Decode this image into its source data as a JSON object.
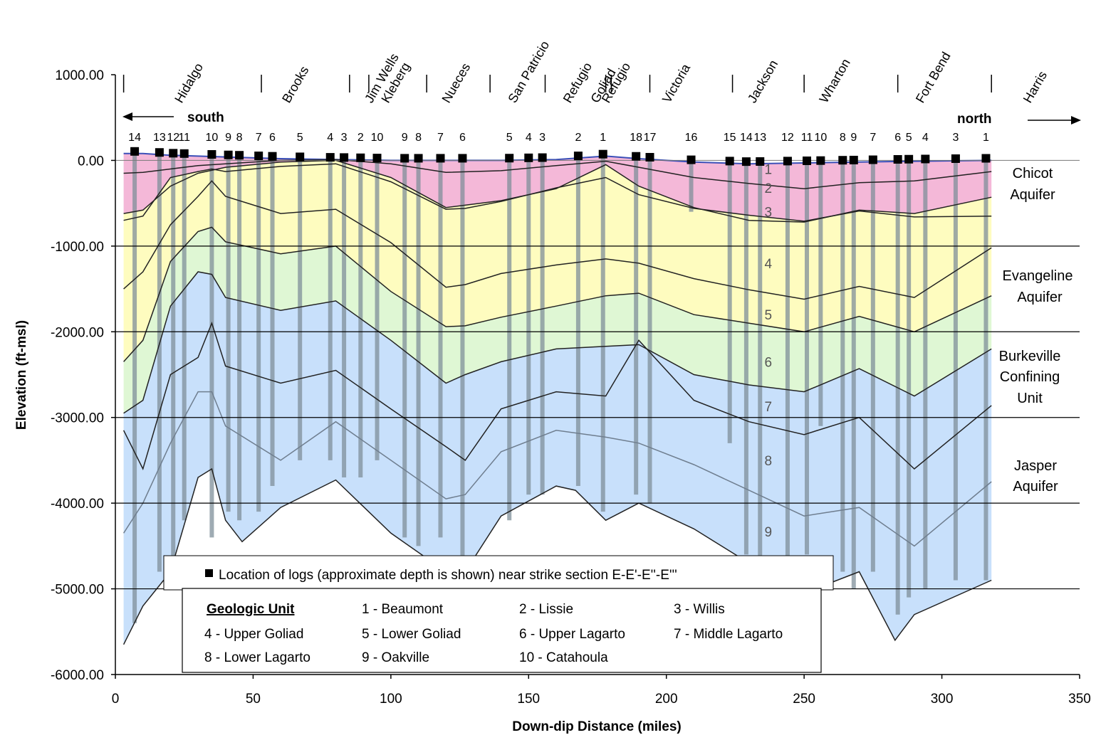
{
  "chart_data": {
    "type": "area",
    "xlabel": "Down-dip Distance (miles)",
    "ylabel": "Elevation (ft-msl)",
    "xlim": [
      0,
      350
    ],
    "ylim": [
      -6000,
      1000
    ],
    "x_ticks": [
      "0",
      "50",
      "100",
      "150",
      "200",
      "250",
      "300",
      "350"
    ],
    "y_ticks": [
      "1000.00",
      "0.00",
      "-1000.00",
      "-2000.00",
      "-3000.00",
      "-4000.00",
      "-5000.00",
      "-6000.00"
    ],
    "horizontal_grid_at": [
      -1000,
      -2000,
      -3000,
      -4000,
      -5000
    ],
    "direction_labels": {
      "south": "south",
      "north": "north"
    },
    "colors": {
      "pink": "#f4b8d8",
      "yellow": "#fefcbf",
      "green": "#dff7d4",
      "blue": "#c8e0fb",
      "well": "#7f8f9a"
    },
    "counties": [
      {
        "name": "Hidalgo",
        "x": 22
      },
      {
        "name": "Brooks",
        "x": 61
      },
      {
        "name": "Jim Wells",
        "x": 91
      },
      {
        "name": "Kleberg",
        "x": 97
      },
      {
        "name": "Nueces",
        "x": 119
      },
      {
        "name": "San Patricio",
        "x": 143
      },
      {
        "name": "Refugio",
        "x": 163
      },
      {
        "name": "Goliad",
        "x": 173
      },
      {
        "name": "Refugio",
        "x": 177
      },
      {
        "name": "Victoria",
        "x": 199
      },
      {
        "name": "Jackson",
        "x": 230
      },
      {
        "name": "Wharton",
        "x": 256
      },
      {
        "name": "Fort Bend",
        "x": 291
      },
      {
        "name": "Harris",
        "x": 330
      }
    ],
    "county_dividers_x": [
      3,
      53,
      85,
      92,
      113,
      136,
      156,
      178,
      180,
      194,
      224,
      250,
      284,
      318
    ],
    "series": [
      {
        "name": "1 - Beaumont",
        "x": [
          3,
          10,
          20,
          30,
          40,
          60,
          80,
          100,
          120,
          140,
          160,
          178,
          190,
          210,
          230,
          250,
          270,
          290,
          318
        ],
        "y": [
          80,
          80,
          60,
          50,
          40,
          20,
          10,
          0,
          0,
          0,
          10,
          50,
          20,
          -20,
          -40,
          -30,
          -20,
          -10,
          0
        ]
      },
      {
        "name": "2 - Lissie",
        "x": [
          3,
          10,
          20,
          30,
          40,
          60,
          80,
          100,
          120,
          140,
          160,
          178,
          190,
          210,
          230,
          250,
          270,
          290,
          318
        ],
        "y": [
          -150,
          -140,
          -100,
          -60,
          -40,
          0,
          10,
          -40,
          -140,
          -120,
          -60,
          -10,
          -80,
          -200,
          -270,
          -330,
          -260,
          -240,
          -130
        ]
      },
      {
        "name": "3 - Willis",
        "x": [
          3,
          10,
          20,
          30,
          40,
          60,
          80,
          100,
          120,
          140,
          160,
          178,
          190,
          210,
          230,
          250,
          270,
          290,
          318
        ],
        "y": [
          -620,
          -580,
          -300,
          -150,
          -80,
          -20,
          0,
          -200,
          -550,
          -470,
          -330,
          -50,
          -300,
          -550,
          -700,
          -720,
          -580,
          -620,
          -430
        ]
      },
      {
        "name": "4 - Upper Goliad",
        "x": [
          3,
          10,
          20,
          30,
          35,
          40,
          60,
          80,
          100,
          120,
          127,
          140,
          160,
          178,
          190,
          210,
          230,
          250,
          270,
          290,
          318
        ],
        "y": [
          -700,
          -650,
          -200,
          -130,
          -100,
          -130,
          -70,
          -40,
          -250,
          -570,
          -560,
          -480,
          -320,
          -200,
          -400,
          -560,
          -640,
          -710,
          -590,
          -660,
          -650
        ]
      },
      {
        "name": "5 - Lower Goliad",
        "x": [
          3,
          10,
          20,
          30,
          35,
          40,
          60,
          80,
          100,
          120,
          127,
          140,
          160,
          178,
          190,
          210,
          230,
          250,
          270,
          290,
          318
        ],
        "y": [
          -1500,
          -1300,
          -750,
          -420,
          -240,
          -420,
          -620,
          -570,
          -960,
          -1480,
          -1450,
          -1320,
          -1220,
          -1150,
          -1200,
          -1380,
          -1510,
          -1620,
          -1470,
          -1600,
          -1020
        ]
      },
      {
        "name": "6 - Upper Lagarto",
        "x": [
          3,
          10,
          20,
          30,
          35,
          40,
          60,
          80,
          100,
          120,
          127,
          140,
          160,
          178,
          190,
          210,
          230,
          250,
          270,
          290,
          318
        ],
        "y": [
          -2350,
          -2100,
          -1180,
          -830,
          -780,
          -950,
          -1090,
          -1000,
          -1530,
          -1940,
          -1930,
          -1830,
          -1700,
          -1580,
          -1550,
          -1800,
          -1900,
          -2000,
          -1820,
          -2000,
          -1580
        ]
      },
      {
        "name": "7 - Middle Lagarto",
        "x": [
          3,
          10,
          20,
          30,
          35,
          40,
          60,
          80,
          100,
          120,
          127,
          140,
          160,
          178,
          190,
          210,
          230,
          250,
          270,
          290,
          318
        ],
        "y": [
          -2950,
          -2800,
          -1700,
          -1300,
          -1330,
          -1600,
          -1750,
          -1640,
          -2100,
          -2600,
          -2500,
          -2350,
          -2200,
          -2170,
          -2150,
          -2500,
          -2620,
          -2700,
          -2430,
          -2750,
          -2200
        ]
      },
      {
        "name": "8 - Lower Lagarto",
        "x": [
          3,
          10,
          20,
          30,
          35,
          40,
          60,
          80,
          100,
          120,
          127,
          140,
          160,
          178,
          190,
          210,
          230,
          250,
          270,
          290,
          318
        ],
        "y": [
          -3150,
          -3600,
          -2500,
          -2300,
          -1900,
          -2400,
          -2600,
          -2450,
          -2900,
          -3340,
          -3500,
          -2900,
          -2700,
          -2750,
          -2100,
          -2800,
          -3050,
          -3200,
          -3000,
          -3600,
          -2860
        ]
      },
      {
        "name": "9 - Oakville",
        "x": [
          3,
          10,
          20,
          30,
          35,
          40,
          60,
          80,
          100,
          120,
          127,
          140,
          160,
          178,
          190,
          210,
          230,
          250,
          270,
          290,
          318
        ],
        "y": [
          -4350,
          -4000,
          -3300,
          -2700,
          -2700,
          -3100,
          -3500,
          -3050,
          -3500,
          -3950,
          -3900,
          -3400,
          -3150,
          -3230,
          -3300,
          -3550,
          -3850,
          -4150,
          -4050,
          -4500,
          -3750
        ]
      },
      {
        "name": "10 - Catahoula",
        "x": [
          3,
          10,
          20,
          30,
          35,
          40,
          46,
          60,
          80,
          100,
          120,
          127,
          140,
          160,
          167,
          178,
          190,
          210,
          230,
          250,
          270,
          283,
          290,
          318
        ],
        "y": [
          -5650,
          -5200,
          -4800,
          -3700,
          -3600,
          -4200,
          -4450,
          -4050,
          -3730,
          -4350,
          -4800,
          -4800,
          -4150,
          -3800,
          -3850,
          -4200,
          -4000,
          -4300,
          -4700,
          -5050,
          -4800,
          -5600,
          -5300,
          -4900
        ]
      }
    ],
    "wells_x": [
      7,
      16,
      21,
      25,
      35,
      41,
      45,
      52,
      57,
      67,
      78,
      83,
      89,
      95,
      105,
      110,
      118,
      126,
      143,
      150,
      155,
      168,
      177,
      189,
      194,
      209,
      223,
      229,
      234,
      244,
      251,
      256,
      264,
      268,
      275,
      284,
      288,
      294,
      305,
      316
    ],
    "wells_bottom_y": [
      -5400,
      -4800,
      -4900,
      -4200,
      -4400,
      -4100,
      -4200,
      -4100,
      -3800,
      -3500,
      -3500,
      -3700,
      -3700,
      -3500,
      -4400,
      -4500,
      -4400,
      -4700,
      -4200,
      -3900,
      -3900,
      -3800,
      -4100,
      -3900,
      -4000,
      -600,
      -3300,
      -4600,
      -4700,
      -4800,
      -4600,
      -3100,
      -4800,
      -5000,
      -4800,
      -5300,
      -5100,
      -5000,
      -4900,
      -4900
    ],
    "log_markers": [
      {
        "label": "14",
        "x": 7
      },
      {
        "label": "13",
        "x": 16
      },
      {
        "label": "12",
        "x": 21
      },
      {
        "label": "11",
        "x": 25
      },
      {
        "label": "10",
        "x": 35
      },
      {
        "label": "9",
        "x": 41
      },
      {
        "label": "8",
        "x": 45
      },
      {
        "label": "7",
        "x": 52
      },
      {
        "label": "6",
        "x": 57
      },
      {
        "label": "5",
        "x": 67
      },
      {
        "label": "4",
        "x": 78
      },
      {
        "label": "3",
        "x": 83
      },
      {
        "label": "2",
        "x": 89
      },
      {
        "label": "10",
        "x": 95
      },
      {
        "label": "9",
        "x": 105
      },
      {
        "label": "8",
        "x": 110
      },
      {
        "label": "7",
        "x": 118
      },
      {
        "label": "6",
        "x": 126
      },
      {
        "label": "5",
        "x": 143
      },
      {
        "label": "4",
        "x": 150
      },
      {
        "label": "3",
        "x": 155
      },
      {
        "label": "2",
        "x": 168
      },
      {
        "label": "1",
        "x": 177
      },
      {
        "label": "18",
        "x": 189
      },
      {
        "label": "17",
        "x": 194
      },
      {
        "label": "16",
        "x": 209
      },
      {
        "label": "15",
        "x": 223
      },
      {
        "label": "14",
        "x": 229
      },
      {
        "label": "13",
        "x": 234
      },
      {
        "label": "12",
        "x": 244
      },
      {
        "label": "11",
        "x": 251
      },
      {
        "label": "10",
        "x": 256
      },
      {
        "label": "8",
        "x": 264
      },
      {
        "label": "9",
        "x": 268
      },
      {
        "label": "7",
        "x": 275
      },
      {
        "label": "6",
        "x": 284
      },
      {
        "label": "5",
        "x": 288
      },
      {
        "label": "4",
        "x": 294
      },
      {
        "label": "3",
        "x": 305
      },
      {
        "label": "1",
        "x": 316
      }
    ],
    "unit_number_labels": [
      {
        "label": "1",
        "x": 237,
        "y": -100
      },
      {
        "label": "2",
        "x": 237,
        "y": -320
      },
      {
        "label": "3",
        "x": 237,
        "y": -600
      },
      {
        "label": "4",
        "x": 237,
        "y": -1200
      },
      {
        "label": "5",
        "x": 237,
        "y": -1800
      },
      {
        "label": "6",
        "x": 237,
        "y": -2350
      },
      {
        "label": "7",
        "x": 237,
        "y": -2870
      },
      {
        "label": "8",
        "x": 237,
        "y": -3500
      },
      {
        "label": "9",
        "x": 237,
        "y": -4330
      }
    ],
    "aquifer_labels": [
      {
        "lines": [
          "Chicot",
          "Aquifer"
        ]
      },
      {
        "lines": [
          "Evangeline",
          "Aquifer"
        ]
      },
      {
        "lines": [
          "Burkeville",
          "Confining",
          "Unit"
        ]
      },
      {
        "lines": [
          "Jasper",
          "Aquifer"
        ]
      }
    ],
    "annotation": "Location of logs (approximate depth is  shown) near strike section E-E'-E''-E'''",
    "legend": {
      "title": "Geologic Unit",
      "items": [
        "1 - Beaumont",
        "2 - Lissie",
        "3 - Willis",
        "4 - Upper Goliad",
        "5 - Lower Goliad",
        "6 - Upper Lagarto",
        "7 - Middle Lagarto",
        "8 - Lower Lagarto",
        "9 - Oakville",
        "10 - Catahoula"
      ]
    }
  }
}
